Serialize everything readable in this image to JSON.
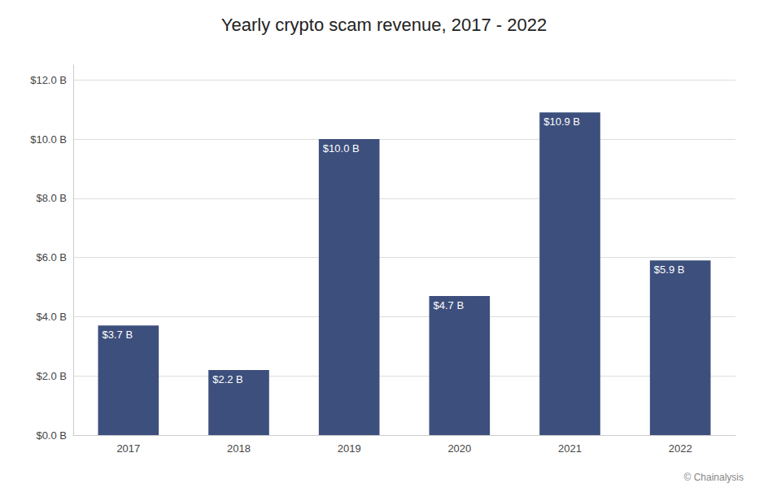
{
  "chart_data": {
    "type": "bar",
    "title": "Yearly crypto scam revenue, 2017 - 2022",
    "categories": [
      "2017",
      "2018",
      "2019",
      "2020",
      "2021",
      "2022"
    ],
    "values": [
      3.7,
      2.2,
      10.0,
      4.7,
      10.9,
      5.9
    ],
    "value_labels": [
      "$3.7 B",
      "$2.2 B",
      "$10.0 B",
      "$4.7 B",
      "$10.9 B",
      "$5.9 B"
    ],
    "data_labels": true,
    "color": "#3d4f7c",
    "ylim": [
      0,
      12.5
    ],
    "yticks": [
      {
        "value": 0,
        "label": "$0.0 B"
      },
      {
        "value": 2,
        "label": "$2.0 B"
      },
      {
        "value": 4,
        "label": "$4.0 B"
      },
      {
        "value": 6,
        "label": "$6.0 B"
      },
      {
        "value": 8,
        "label": "$8.0 B"
      },
      {
        "value": 10,
        "label": "$10.0 B"
      },
      {
        "value": 12,
        "label": "$12.0 B"
      }
    ],
    "grid": true,
    "annotation": "© Chainalysis"
  }
}
